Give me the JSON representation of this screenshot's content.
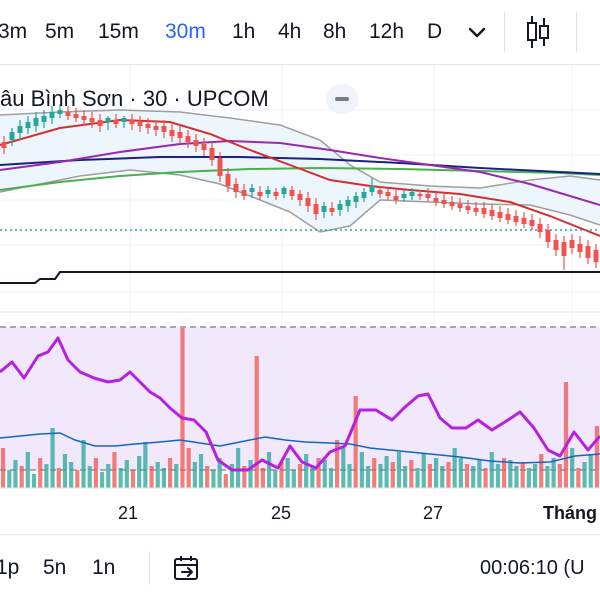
{
  "toolbar": {
    "timeframes": [
      "3m",
      "5m",
      "15m",
      "30m",
      "1h",
      "4h",
      "8h",
      "12h",
      "D"
    ],
    "active": "30m"
  },
  "legend": {
    "title": "âu Bình Sơn · 30 · UPCOM"
  },
  "icons": {
    "expand": "chevron-down-icon",
    "chart_type": "candlestick-icon",
    "collapse": "minus-icon",
    "goto_date": "calendar-goto-icon"
  },
  "colors": {
    "up": "#26a69a",
    "down": "#ef5350",
    "active_timeframe": "#2962ff",
    "bollinger": "#9e9e9e",
    "ma_red": "#d32f2f",
    "ma_purple": "#9c27b0",
    "ma_navy": "#1a237e",
    "ma_green": "#4caf50",
    "rsi": "#b620e0",
    "volume_ma": "#1565c0"
  },
  "x_axis": {
    "labels": [
      "21",
      "25",
      "27",
      "Tháng"
    ]
  },
  "bottom_bar": {
    "ranges": [
      "1p",
      "5n",
      "1n"
    ],
    "clock": "00:06:10 (U"
  }
}
